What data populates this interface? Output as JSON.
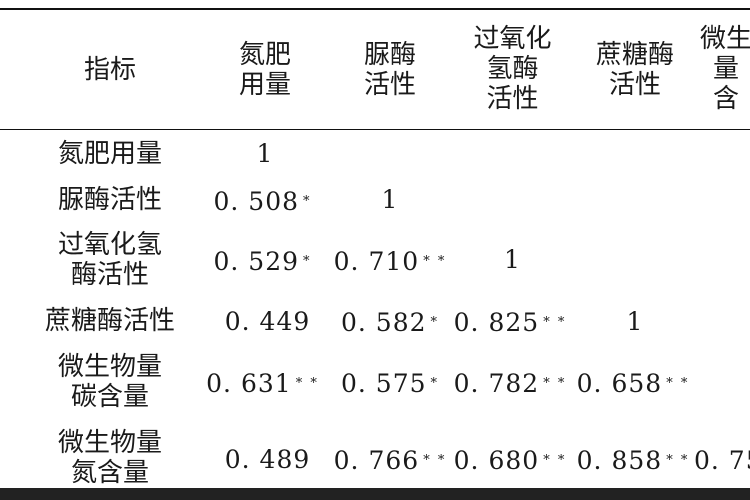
{
  "table": {
    "header": {
      "indicator": "指标",
      "col1": "氮肥\n用量",
      "col2": "脲酶\n活性",
      "col3": "过氧化\n氢酶\n活性",
      "col4": "蔗糖酶\n活性",
      "col5": "微生\n量\n含"
    },
    "rows": [
      {
        "label": "氮肥用量",
        "c1": "1"
      },
      {
        "label": "脲酶活性",
        "c1": "0. 508",
        "c1_sig": "*",
        "c2": "1"
      },
      {
        "label": "过氧化氢\n酶活性",
        "c1": "0. 529",
        "c1_sig": "*",
        "c2": "0. 710",
        "c2_sig": "* *",
        "c3": "1"
      },
      {
        "label": "蔗糖酶活性",
        "c1": "0. 449",
        "c2": "0. 582",
        "c2_sig": "*",
        "c3": "0. 825",
        "c3_sig": "* *",
        "c4": "1"
      },
      {
        "label": "微生物量\n碳含量",
        "c1": "0. 631",
        "c1_sig": "* *",
        "c2": "0. 575",
        "c2_sig": "*",
        "c3": "0. 782",
        "c3_sig": "* *",
        "c4": "0. 658",
        "c4_sig": "* *"
      },
      {
        "label": "微生物量\n氮含量",
        "c1": "0. 489",
        "c2": "0. 766",
        "c2_sig": "* *",
        "c3": "0. 680",
        "c3_sig": "* *",
        "c4": "0. 858",
        "c4_sig": "* *",
        "c5": "0. 75"
      }
    ]
  }
}
